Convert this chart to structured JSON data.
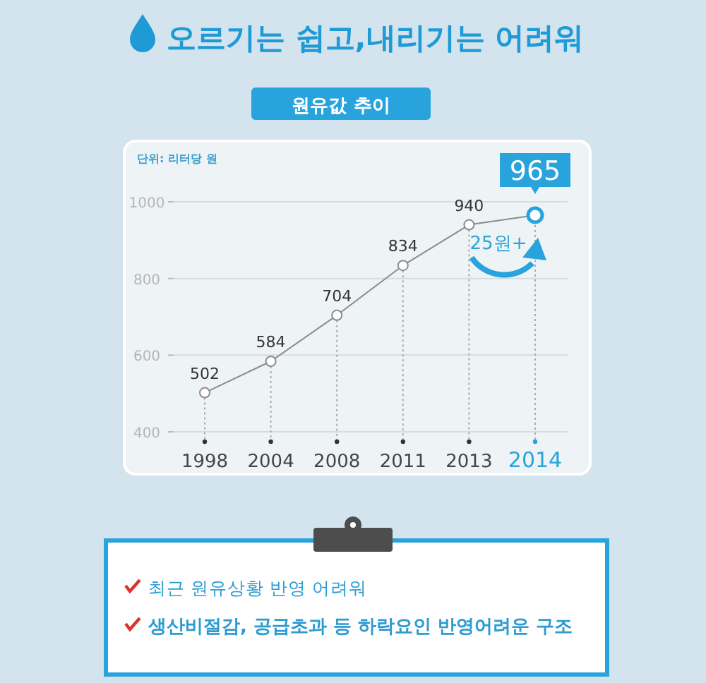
{
  "chart_data": {
    "type": "line",
    "title": "오르기는 쉽고,내리기는 어려워",
    "subtitle": "원유값 추이",
    "categories": [
      "1998",
      "2004",
      "2008",
      "2011",
      "2013",
      "2014"
    ],
    "series": [
      {
        "color": "#8c8c8c",
        "colors": [
          "#8c8c8c",
          "#8c8c8c",
          "#8c8c8c",
          "#8c8c8c",
          "#8c8c8c",
          "#29a3dc"
        ],
        "values": [
          502,
          584,
          704,
          834,
          940,
          965
        ]
      }
    ],
    "ylim": [
      400,
      1000
    ],
    "yticks": [
      400,
      600,
      800,
      1000
    ],
    "grid": true,
    "marker": "circle",
    "data_labels": true,
    "annotations": [
      "단위: 리터당 원",
      {
        "text": "25원+",
        "x": "2014",
        "y": 965
      },
      "최근 원유상황 반영 어려워",
      "생산비절감, 공급초과 등 하락요인 반영어려운 구조"
    ]
  }
}
